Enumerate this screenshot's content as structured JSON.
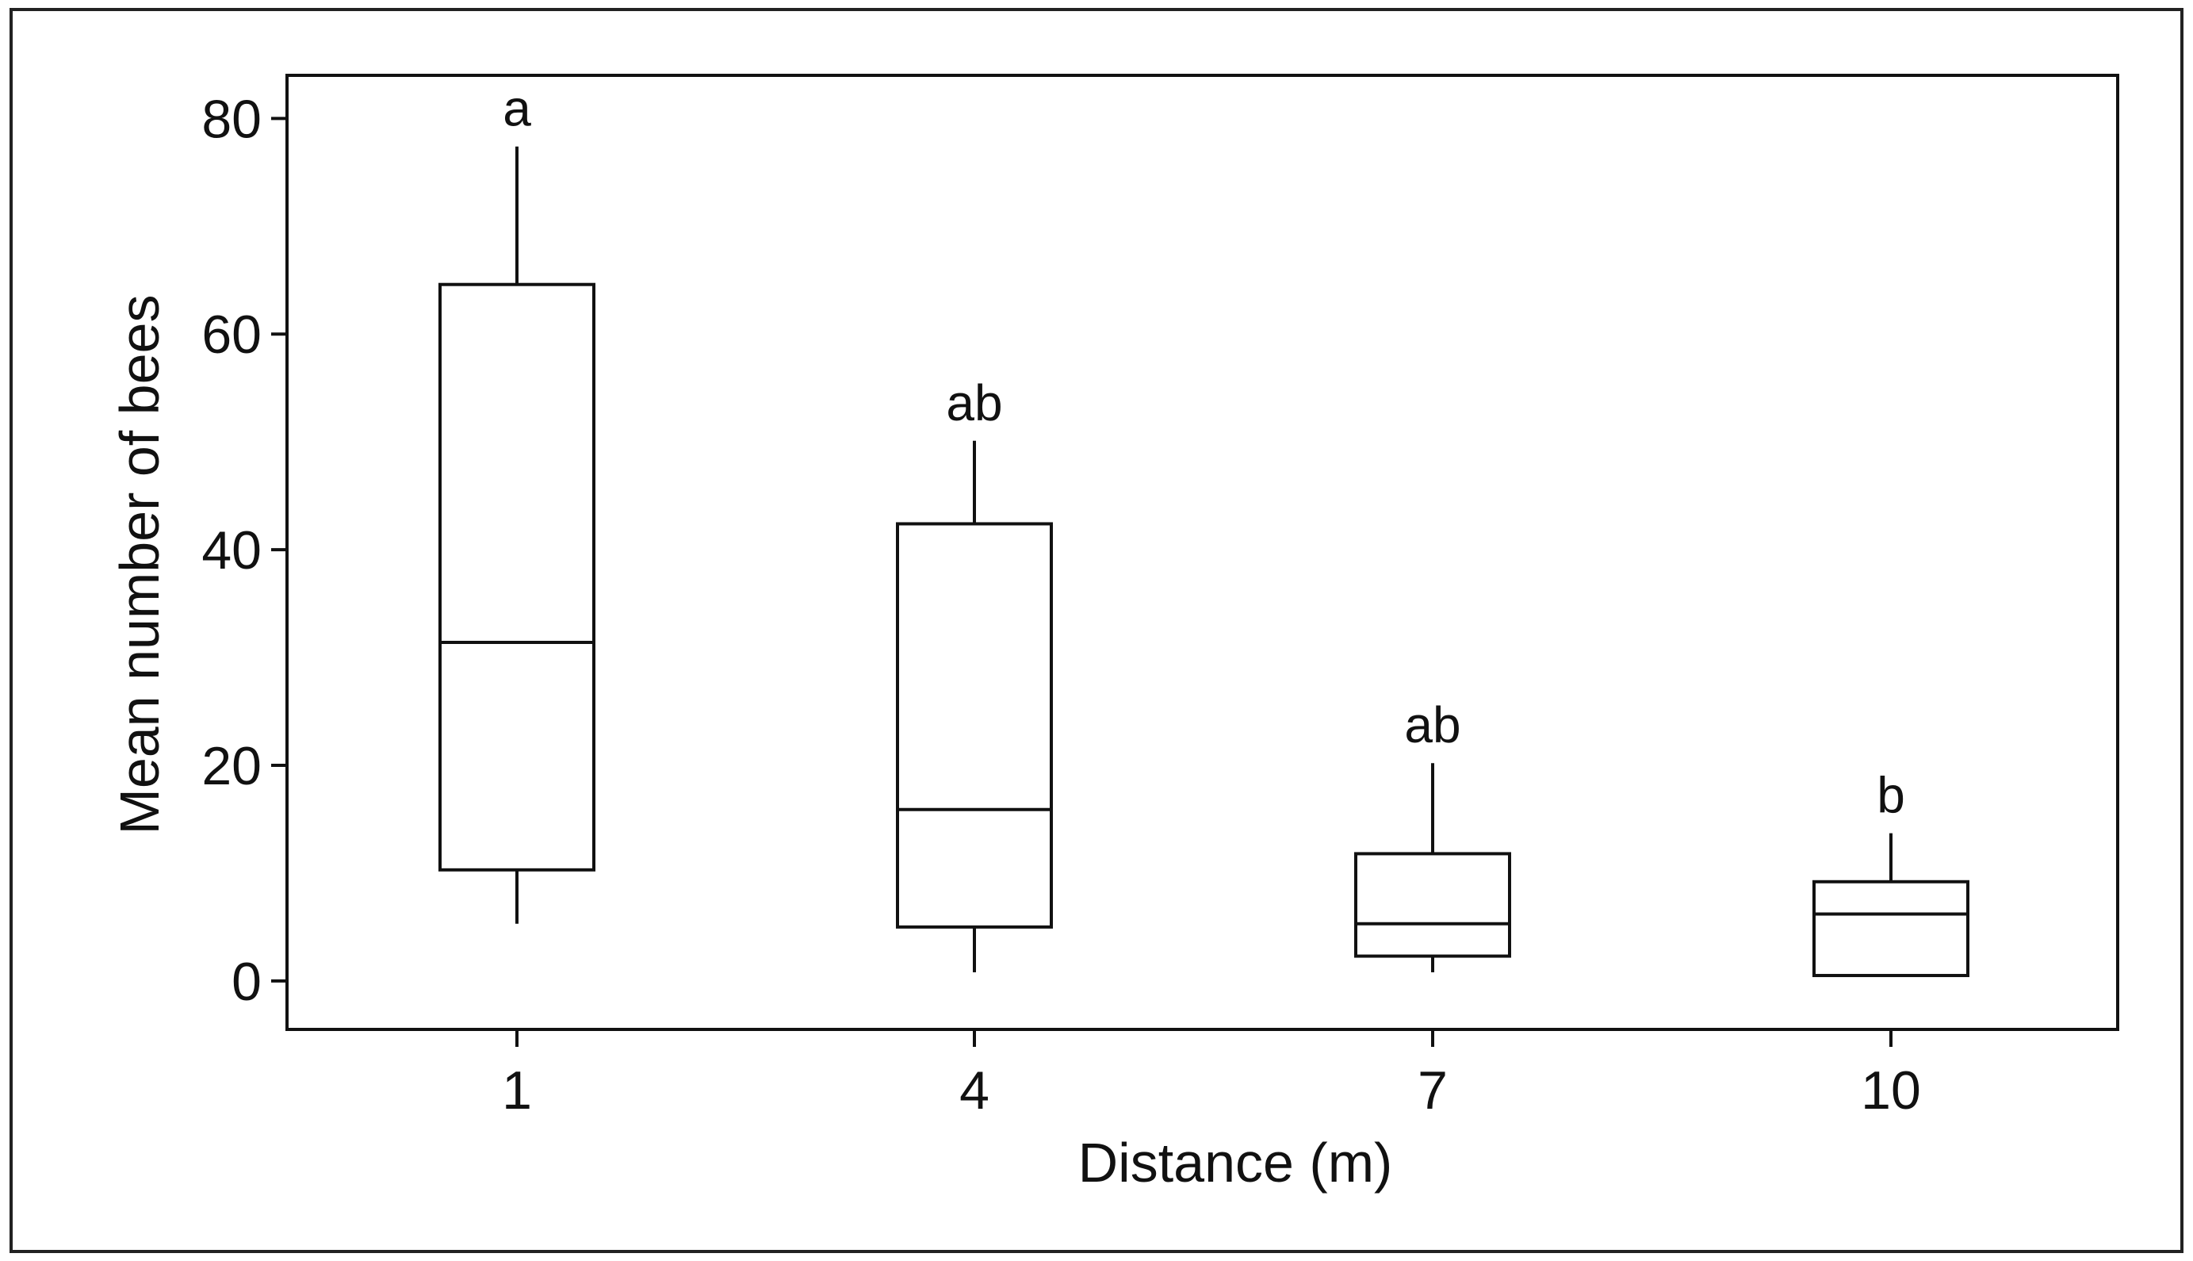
{
  "chart_data": {
    "type": "box",
    "title": "",
    "xlabel": "Distance (m)",
    "ylabel": "Mean number of bees",
    "ylim": [
      -4.5,
      84
    ],
    "yticks": [
      0,
      20,
      40,
      60,
      80
    ],
    "grid": false,
    "legend": "none",
    "categories": [
      "1",
      "4",
      "7",
      "10"
    ],
    "boxes": [
      {
        "category": "1",
        "whisker_low": 5.3,
        "q1": 10.3,
        "median": 31.4,
        "q3": 64.6,
        "whisker_high": 77.4,
        "group_label": "a"
      },
      {
        "category": "4",
        "whisker_low": 0.8,
        "q1": 5.0,
        "median": 15.9,
        "q3": 42.4,
        "whisker_high": 50.1,
        "group_label": "ab"
      },
      {
        "category": "7",
        "whisker_low": 0.8,
        "q1": 2.3,
        "median": 5.3,
        "q3": 11.8,
        "whisker_high": 20.2,
        "group_label": "ab"
      },
      {
        "category": "10",
        "whisker_low": 0.5,
        "q1": 0.5,
        "median": 6.2,
        "q3": 9.2,
        "whisker_high": 13.7,
        "group_label": "b"
      }
    ],
    "colors": {
      "stroke": "#111111",
      "box_fill": "#ffffff",
      "background": "#ffffff"
    }
  }
}
